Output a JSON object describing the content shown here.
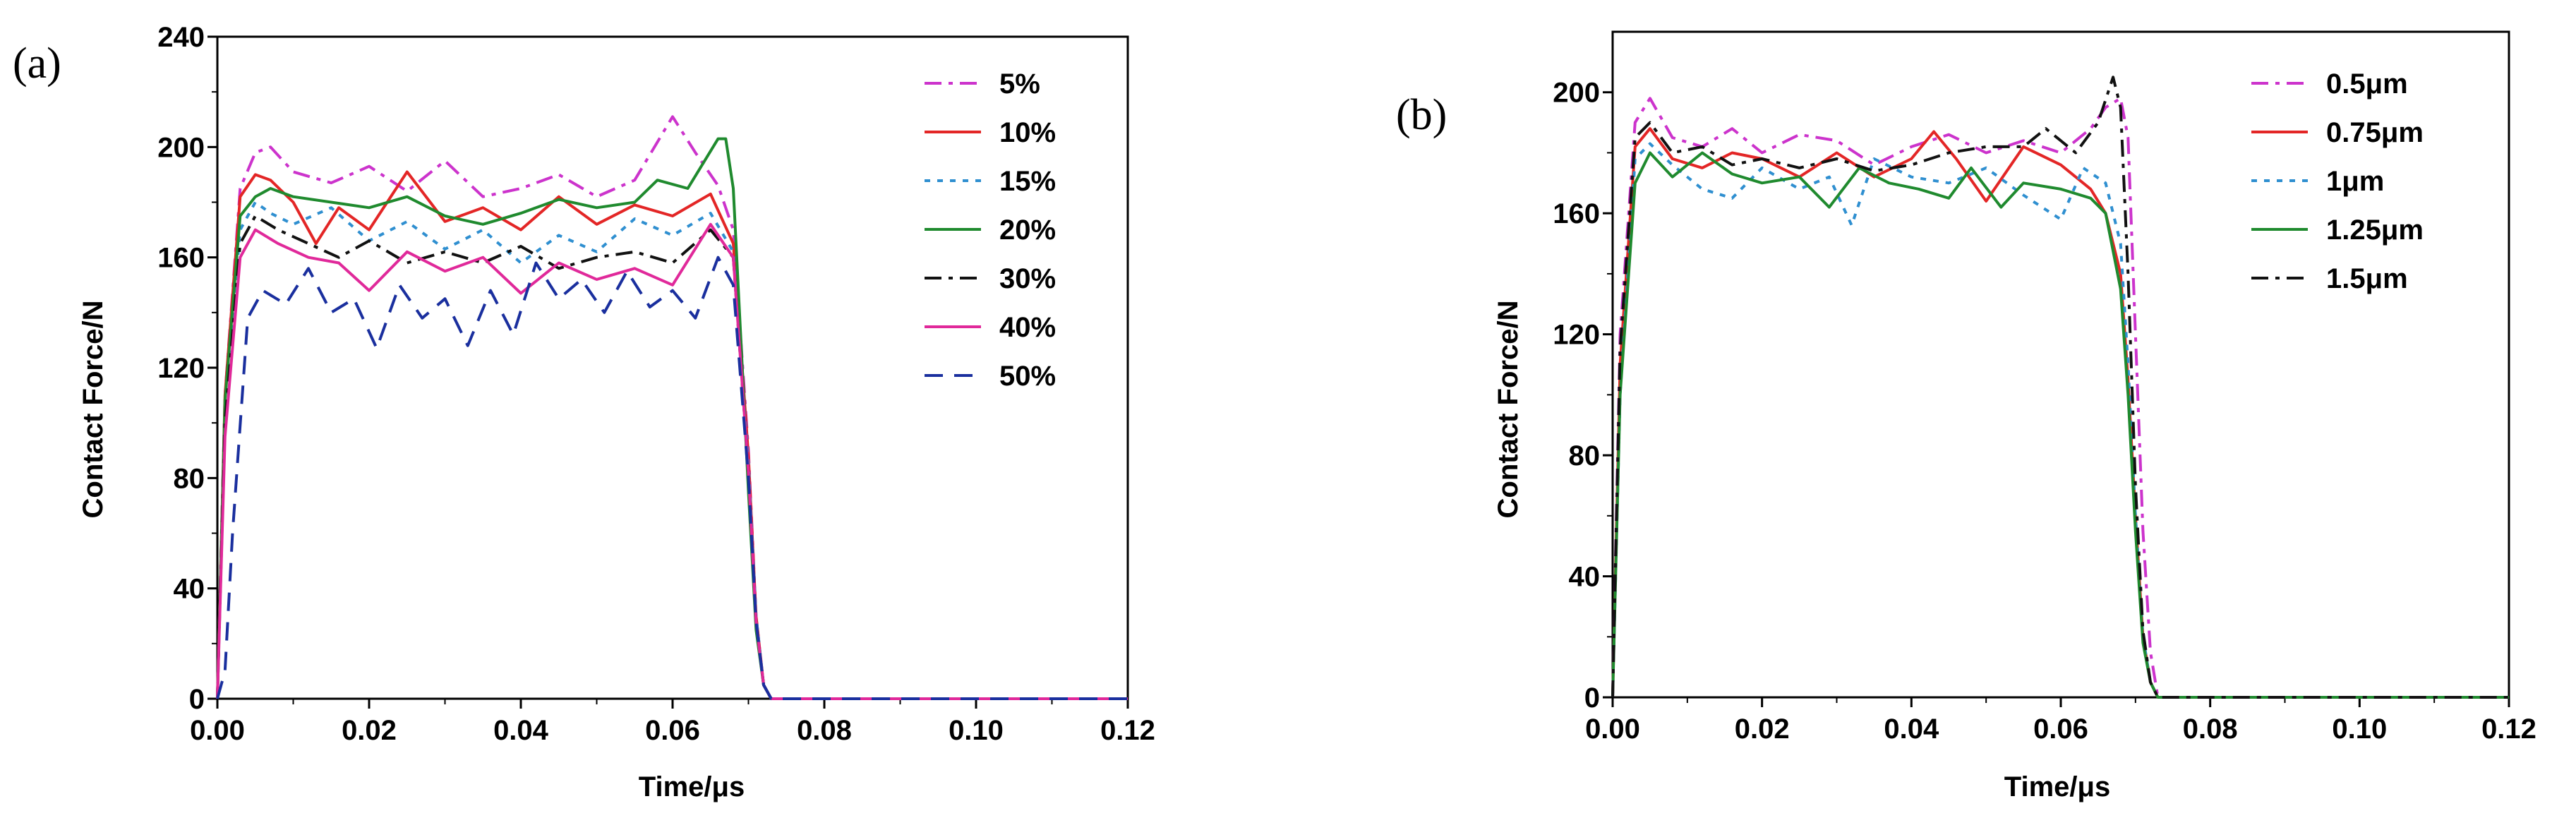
{
  "figure": {
    "panels": [
      "(a)",
      "(b)"
    ]
  },
  "chart_data": [
    {
      "panel_label": "(a)",
      "type": "line",
      "xlabel": "Time/μs",
      "ylabel": "Contact Force/N",
      "xlim": [
        0,
        0.12
      ],
      "ylim": [
        0,
        240
      ],
      "xticks": [
        0.0,
        0.02,
        0.04,
        0.06,
        0.08,
        0.1,
        0.12
      ],
      "xtick_labels": [
        "0.00",
        "0.02",
        "0.04",
        "0.06",
        "0.08",
        "0.10",
        "0.12"
      ],
      "yticks": [
        0,
        40,
        80,
        120,
        160,
        200,
        240
      ],
      "ytick_labels": [
        "0",
        "40",
        "80",
        "120",
        "160",
        "200",
        "240"
      ],
      "legend_position": "top-right",
      "series": [
        {
          "name": "5%",
          "color": "#cc33cc",
          "dash": "dashdot",
          "x": [
            0,
            0.001,
            0.003,
            0.005,
            0.007,
            0.01,
            0.015,
            0.02,
            0.025,
            0.03,
            0.035,
            0.04,
            0.045,
            0.05,
            0.055,
            0.06,
            0.063,
            0.066,
            0.068,
            0.07,
            0.071,
            0.072,
            0.073,
            0.08,
            0.1,
            0.12
          ],
          "y": [
            0,
            110,
            185,
            198,
            200,
            191,
            187,
            193,
            184,
            195,
            182,
            185,
            190,
            182,
            188,
            211,
            198,
            186,
            170,
            90,
            30,
            5,
            0,
            0,
            0,
            0
          ]
        },
        {
          "name": "10%",
          "color": "#e32626",
          "dash": "solid",
          "x": [
            0,
            0.001,
            0.003,
            0.005,
            0.007,
            0.01,
            0.013,
            0.016,
            0.02,
            0.025,
            0.03,
            0.035,
            0.04,
            0.045,
            0.05,
            0.055,
            0.06,
            0.065,
            0.068,
            0.07,
            0.071,
            0.072,
            0.073,
            0.08,
            0.1,
            0.12
          ],
          "y": [
            0,
            110,
            182,
            190,
            188,
            180,
            165,
            178,
            170,
            191,
            173,
            178,
            170,
            182,
            172,
            179,
            175,
            183,
            165,
            88,
            30,
            5,
            0,
            0,
            0,
            0
          ]
        },
        {
          "name": "15%",
          "color": "#2f8fd0",
          "dash": "dot",
          "x": [
            0,
            0.001,
            0.003,
            0.005,
            0.007,
            0.01,
            0.015,
            0.02,
            0.025,
            0.03,
            0.035,
            0.04,
            0.045,
            0.05,
            0.055,
            0.06,
            0.065,
            0.068,
            0.07,
            0.071,
            0.072,
            0.073,
            0.08,
            0.1,
            0.12
          ],
          "y": [
            0,
            105,
            170,
            180,
            176,
            172,
            178,
            166,
            173,
            163,
            170,
            158,
            168,
            162,
            174,
            168,
            176,
            162,
            85,
            30,
            5,
            0,
            0,
            0,
            0
          ]
        },
        {
          "name": "20%",
          "color": "#1f8a2e",
          "dash": "solid",
          "x": [
            0,
            0.001,
            0.003,
            0.005,
            0.007,
            0.01,
            0.015,
            0.02,
            0.025,
            0.03,
            0.035,
            0.04,
            0.045,
            0.05,
            0.055,
            0.058,
            0.062,
            0.066,
            0.067,
            0.068,
            0.069,
            0.07,
            0.071,
            0.072,
            0.073,
            0.08,
            0.1,
            0.12
          ],
          "y": [
            0,
            108,
            175,
            182,
            185,
            182,
            180,
            178,
            182,
            175,
            172,
            176,
            181,
            178,
            180,
            188,
            185,
            203,
            203,
            185,
            130,
            75,
            25,
            5,
            0,
            0,
            0,
            0
          ]
        },
        {
          "name": "30%",
          "color": "#111111",
          "dash": "dashdot",
          "x": [
            0,
            0.001,
            0.003,
            0.005,
            0.008,
            0.012,
            0.016,
            0.02,
            0.025,
            0.03,
            0.035,
            0.04,
            0.045,
            0.05,
            0.055,
            0.06,
            0.065,
            0.068,
            0.07,
            0.071,
            0.072,
            0.073,
            0.08,
            0.1,
            0.12
          ],
          "y": [
            0,
            100,
            165,
            175,
            170,
            165,
            160,
            166,
            158,
            162,
            158,
            164,
            156,
            160,
            162,
            158,
            170,
            160,
            82,
            28,
            5,
            0,
            0,
            0,
            0
          ]
        },
        {
          "name": "40%",
          "color": "#e0299a",
          "dash": "solid",
          "x": [
            0,
            0.001,
            0.003,
            0.005,
            0.008,
            0.012,
            0.016,
            0.02,
            0.025,
            0.03,
            0.035,
            0.04,
            0.045,
            0.05,
            0.055,
            0.06,
            0.065,
            0.068,
            0.07,
            0.071,
            0.072,
            0.073,
            0.08,
            0.1,
            0.12
          ],
          "y": [
            0,
            95,
            160,
            170,
            165,
            160,
            158,
            148,
            162,
            155,
            160,
            147,
            158,
            152,
            156,
            150,
            172,
            160,
            82,
            28,
            5,
            0,
            0,
            0,
            0
          ]
        },
        {
          "name": "50%",
          "color": "#1a2f9e",
          "dash": "dash",
          "x": [
            0,
            0.001,
            0.002,
            0.004,
            0.006,
            0.009,
            0.012,
            0.015,
            0.018,
            0.021,
            0.024,
            0.027,
            0.03,
            0.033,
            0.036,
            0.039,
            0.042,
            0.045,
            0.048,
            0.051,
            0.054,
            0.057,
            0.06,
            0.063,
            0.066,
            0.068,
            0.07,
            0.071,
            0.072,
            0.073,
            0.08,
            0.1,
            0.12
          ],
          "y": [
            0,
            10,
            60,
            138,
            148,
            143,
            156,
            140,
            145,
            127,
            150,
            138,
            145,
            128,
            148,
            132,
            158,
            145,
            152,
            140,
            155,
            142,
            148,
            138,
            160,
            150,
            80,
            28,
            5,
            0,
            0,
            0,
            0
          ]
        }
      ]
    },
    {
      "panel_label": "(b)",
      "type": "line",
      "xlabel": "Time/μs",
      "ylabel": "Contact Force/N",
      "xlim": [
        0,
        0.12
      ],
      "ylim": [
        0,
        220
      ],
      "xticks": [
        0.0,
        0.02,
        0.04,
        0.06,
        0.08,
        0.1,
        0.12
      ],
      "xtick_labels": [
        "0.00",
        "0.02",
        "0.04",
        "0.06",
        "0.08",
        "0.10",
        "0.12"
      ],
      "yticks": [
        0,
        40,
        80,
        120,
        160,
        200
      ],
      "ytick_labels": [
        "0",
        "40",
        "80",
        "120",
        "160",
        "200"
      ],
      "legend_position": "top-right",
      "series": [
        {
          "name": "0.5μm",
          "color": "#cc33cc",
          "dash": "dashdot",
          "x": [
            0,
            0.001,
            0.003,
            0.005,
            0.008,
            0.012,
            0.016,
            0.02,
            0.025,
            0.03,
            0.035,
            0.04,
            0.045,
            0.05,
            0.055,
            0.06,
            0.064,
            0.066,
            0.068,
            0.069,
            0.07,
            0.071,
            0.072,
            0.073,
            0.08,
            0.1,
            0.12
          ],
          "y": [
            0,
            120,
            190,
            198,
            185,
            182,
            188,
            180,
            186,
            184,
            176,
            182,
            186,
            180,
            184,
            180,
            188,
            195,
            198,
            185,
            120,
            55,
            15,
            0,
            0,
            0,
            0
          ]
        },
        {
          "name": "0.75μm",
          "color": "#e32626",
          "dash": "solid",
          "x": [
            0,
            0.001,
            0.003,
            0.005,
            0.008,
            0.012,
            0.016,
            0.02,
            0.025,
            0.03,
            0.035,
            0.04,
            0.043,
            0.046,
            0.05,
            0.055,
            0.06,
            0.064,
            0.066,
            0.068,
            0.069,
            0.07,
            0.071,
            0.072,
            0.073,
            0.08,
            0.1,
            0.12
          ],
          "y": [
            0,
            110,
            182,
            188,
            178,
            175,
            180,
            178,
            172,
            180,
            172,
            178,
            187,
            178,
            164,
            182,
            176,
            168,
            160,
            140,
            105,
            60,
            20,
            5,
            0,
            0,
            0,
            0
          ]
        },
        {
          "name": "1μm",
          "color": "#2f8fd0",
          "dash": "dot",
          "x": [
            0,
            0.001,
            0.003,
            0.005,
            0.008,
            0.012,
            0.016,
            0.02,
            0.025,
            0.029,
            0.032,
            0.035,
            0.04,
            0.045,
            0.05,
            0.055,
            0.06,
            0.063,
            0.066,
            0.068,
            0.069,
            0.07,
            0.071,
            0.072,
            0.073,
            0.08,
            0.1,
            0.12
          ],
          "y": [
            0,
            100,
            178,
            183,
            176,
            168,
            165,
            175,
            168,
            172,
            156,
            178,
            172,
            170,
            175,
            166,
            158,
            175,
            170,
            150,
            110,
            60,
            20,
            5,
            0,
            0,
            0,
            0
          ]
        },
        {
          "name": "1.25μm",
          "color": "#1f8a2e",
          "dash": "solid",
          "x": [
            0,
            0.001,
            0.003,
            0.005,
            0.008,
            0.012,
            0.016,
            0.02,
            0.025,
            0.029,
            0.033,
            0.037,
            0.041,
            0.045,
            0.048,
            0.052,
            0.055,
            0.06,
            0.064,
            0.066,
            0.068,
            0.069,
            0.07,
            0.071,
            0.072,
            0.073,
            0.08,
            0.1,
            0.12
          ],
          "y": [
            0,
            100,
            170,
            180,
            172,
            180,
            173,
            170,
            172,
            162,
            175,
            170,
            168,
            165,
            175,
            162,
            170,
            168,
            165,
            160,
            135,
            100,
            55,
            18,
            5,
            0,
            0,
            0,
            0
          ]
        },
        {
          "name": "1.5μm",
          "color": "#111111",
          "dash": "dashdot",
          "x": [
            0,
            0.001,
            0.003,
            0.005,
            0.008,
            0.012,
            0.016,
            0.02,
            0.025,
            0.03,
            0.035,
            0.04,
            0.045,
            0.05,
            0.055,
            0.058,
            0.062,
            0.065,
            0.067,
            0.068,
            0.069,
            0.07,
            0.071,
            0.072,
            0.073,
            0.08,
            0.1,
            0.12
          ],
          "y": [
            0,
            115,
            185,
            190,
            180,
            182,
            176,
            178,
            175,
            178,
            174,
            176,
            180,
            182,
            182,
            188,
            180,
            190,
            205,
            195,
            140,
            70,
            22,
            5,
            0,
            0,
            0,
            0
          ]
        }
      ]
    }
  ]
}
